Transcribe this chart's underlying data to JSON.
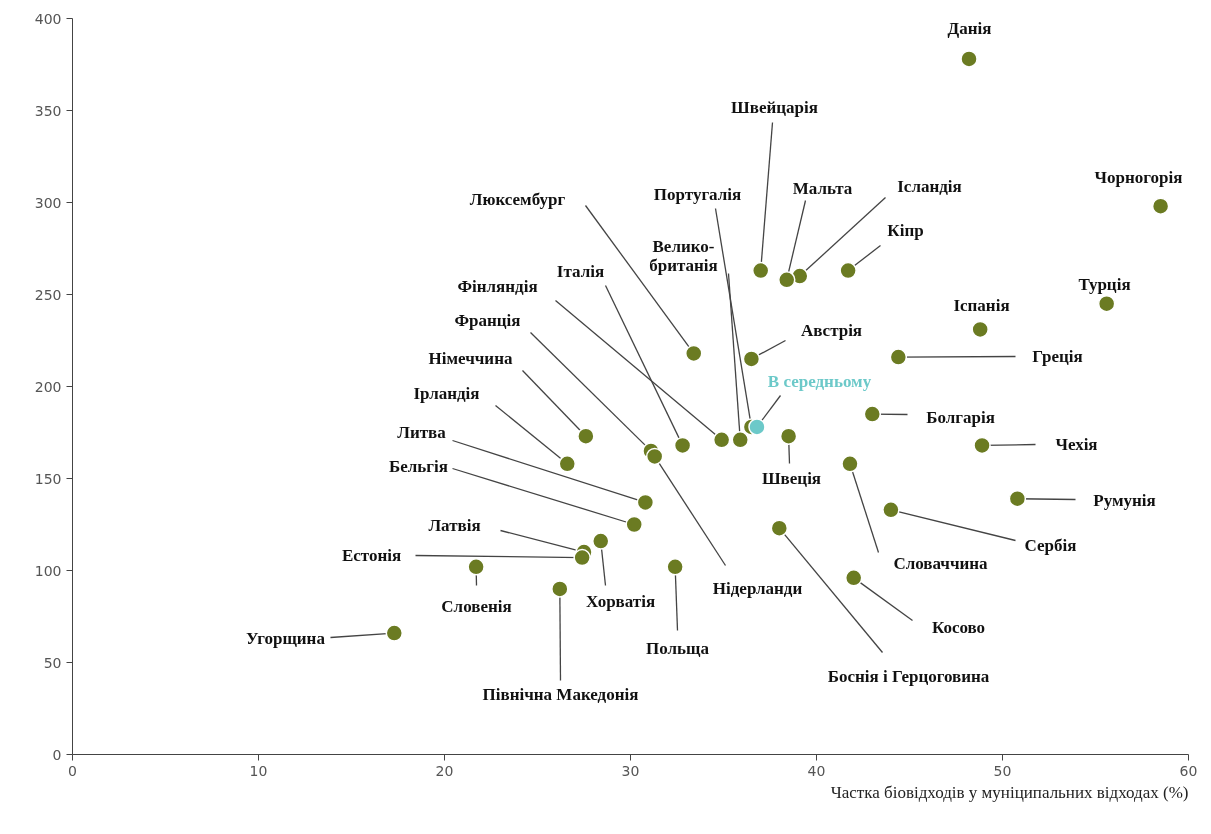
{
  "chart_data": {
    "type": "scatter",
    "xlabel": "Частка біовідходів у муніципальних відходах (%)",
    "xlim": [
      0,
      60
    ],
    "xticks": [
      0,
      10,
      20,
      30,
      40,
      50,
      60
    ],
    "ylim": [
      0,
      400
    ],
    "yticks": [
      0,
      50,
      100,
      150,
      200,
      250,
      300,
      350,
      400
    ],
    "grid": false,
    "marker": "circle",
    "series": [
      {
        "name": "Данія",
        "color": "#6b7b22",
        "x": [
          48.2
        ],
        "values": [
          378
        ]
      },
      {
        "name": "Чорногорія",
        "color": "#6b7b22",
        "x": [
          58.5
        ],
        "values": [
          298
        ]
      },
      {
        "name": "Турція",
        "color": "#6b7b22",
        "x": [
          55.6
        ],
        "values": [
          245
        ]
      },
      {
        "name": "Іспанія",
        "color": "#6b7b22",
        "x": [
          48.8
        ],
        "values": [
          231
        ]
      },
      {
        "name": "Греція",
        "color": "#6b7b22",
        "x": [
          44.4
        ],
        "values": [
          216
        ]
      },
      {
        "name": "Болгарія",
        "color": "#6b7b22",
        "x": [
          43.0
        ],
        "values": [
          185
        ]
      },
      {
        "name": "Чехія",
        "color": "#6b7b22",
        "x": [
          48.9
        ],
        "values": [
          168
        ]
      },
      {
        "name": "Румунія",
        "color": "#6b7b22",
        "x": [
          50.8
        ],
        "values": [
          139
        ]
      },
      {
        "name": "Сербія",
        "color": "#6b7b22",
        "x": [
          44.0
        ],
        "values": [
          133
        ]
      },
      {
        "name": "Словаччина",
        "color": "#6b7b22",
        "x": [
          41.8
        ],
        "values": [
          158
        ]
      },
      {
        "name": "Косово",
        "color": "#6b7b22",
        "x": [
          42.0
        ],
        "values": [
          96
        ]
      },
      {
        "name": "Боснія і Герцоговина",
        "color": "#6b7b22",
        "x": [
          38.0
        ],
        "values": [
          123
        ]
      },
      {
        "name": "Швеція",
        "color": "#6b7b22",
        "x": [
          38.5
        ],
        "values": [
          173
        ]
      },
      {
        "name": "Кіпр",
        "color": "#6b7b22",
        "x": [
          41.7
        ],
        "values": [
          263
        ]
      },
      {
        "name": "Ісландія",
        "color": "#6b7b22",
        "x": [
          39.1
        ],
        "values": [
          260
        ]
      },
      {
        "name": "Мальта",
        "color": "#6b7b22",
        "x": [
          38.4
        ],
        "values": [
          258
        ]
      },
      {
        "name": "Швейцарія",
        "color": "#6b7b22",
        "x": [
          37.0
        ],
        "values": [
          263
        ]
      },
      {
        "name": "Австрія",
        "color": "#6b7b22",
        "x": [
          36.5
        ],
        "values": [
          215
        ]
      },
      {
        "name": "Португалія",
        "color": "#6b7b22",
        "x": [
          36.5
        ],
        "values": [
          178
        ]
      },
      {
        "name": "Велико-\nбританія",
        "color": "#6b7b22",
        "x": [
          35.9
        ],
        "values": [
          171
        ]
      },
      {
        "name": "Люксембург",
        "color": "#6b7b22",
        "x": [
          33.4
        ],
        "values": [
          218
        ]
      },
      {
        "name": "Італія",
        "color": "#6b7b22",
        "x": [
          32.8
        ],
        "values": [
          168
        ]
      },
      {
        "name": "Фінляндія",
        "color": "#6b7b22",
        "x": [
          34.9
        ],
        "values": [
          171
        ]
      },
      {
        "name": "Франція",
        "color": "#6b7b22",
        "x": [
          31.1
        ],
        "values": [
          165
        ]
      },
      {
        "name": "Німеччина",
        "color": "#6b7b22",
        "x": [
          27.6
        ],
        "values": [
          173
        ]
      },
      {
        "name": "Ірландія",
        "color": "#6b7b22",
        "x": [
          26.6
        ],
        "values": [
          158
        ]
      },
      {
        "name": "Литва",
        "color": "#6b7b22",
        "x": [
          30.8
        ],
        "values": [
          137
        ]
      },
      {
        "name": "Бельгія",
        "color": "#6b7b22",
        "x": [
          30.2
        ],
        "values": [
          125
        ]
      },
      {
        "name": "Латвія",
        "color": "#6b7b22",
        "x": [
          27.5
        ],
        "values": [
          110
        ]
      },
      {
        "name": "Естонія",
        "color": "#6b7b22",
        "x": [
          27.4
        ],
        "values": [
          107
        ]
      },
      {
        "name": "Хорватія",
        "color": "#6b7b22",
        "x": [
          28.4
        ],
        "values": [
          116
        ]
      },
      {
        "name": "Словенія",
        "color": "#6b7b22",
        "x": [
          21.7
        ],
        "values": [
          102
        ]
      },
      {
        "name": "Північна Македонія",
        "color": "#6b7b22",
        "x": [
          26.2
        ],
        "values": [
          90
        ]
      },
      {
        "name": "Польща",
        "color": "#6b7b22",
        "x": [
          32.4
        ],
        "values": [
          102
        ]
      },
      {
        "name": "Нідерланди",
        "color": "#6b7b22",
        "x": [
          31.3
        ],
        "values": [
          162
        ]
      },
      {
        "name": "Угорщина",
        "color": "#6b7b22",
        "x": [
          17.3
        ],
        "values": [
          66
        ]
      },
      {
        "name": "В середньому",
        "color": "#6cc9c9",
        "x": [
          36.8
        ],
        "values": [
          178
        ]
      }
    ]
  }
}
